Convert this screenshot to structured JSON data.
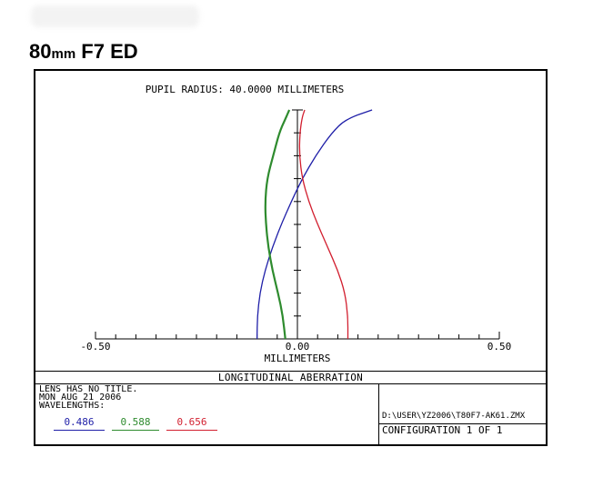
{
  "page": {
    "heading_main": "80",
    "heading_unit": "mm",
    "heading_rest": " F7 ED"
  },
  "figure": {
    "header_text": "PUPIL RADIUS: 40.0000 MILLIMETERS",
    "bar_title": "LONGITUDINAL ABERRATION",
    "lens_title": "LENS HAS NO TITLE.",
    "date": "MON AUG 21 2006",
    "wavelengths_label": "WAVELENGTHS:",
    "wavelengths": [
      {
        "label": "0.486",
        "color": "#1f1fa8"
      },
      {
        "label": "0.588",
        "color": "#2e8b2e"
      },
      {
        "label": "0.656",
        "color": "#d21f2f"
      }
    ],
    "file_path": "D:\\USER\\YZ2006\\T80F7-AK61.ZMX",
    "configuration": "CONFIGURATION  1  OF  1"
  },
  "chart_data": {
    "type": "line",
    "title": "PUPIL RADIUS: 40.0000 MILLIMETERS",
    "xlabel": "MILLIMETERS",
    "ylabel": "",
    "xlim": [
      -0.5,
      0.5
    ],
    "ylim": [
      0,
      1
    ],
    "x_ticks": [
      -0.5,
      0.0,
      0.5
    ],
    "x_tick_labels": [
      "-0.50",
      "0.00",
      "0.50"
    ],
    "x_minor_step": 0.05,
    "y_ticks": [
      0.1,
      0.2,
      0.3,
      0.4,
      0.5,
      0.6,
      0.7,
      0.8,
      0.9,
      1.0
    ],
    "grid": false,
    "series": [
      {
        "name": "0.486",
        "color": "#1f1fa8",
        "points": [
          [
            -0.1,
            0.0
          ],
          [
            -0.099,
            0.1
          ],
          [
            -0.093,
            0.2
          ],
          [
            -0.08,
            0.3
          ],
          [
            -0.062,
            0.4
          ],
          [
            -0.04,
            0.5
          ],
          [
            -0.015,
            0.6
          ],
          [
            0.012,
            0.7
          ],
          [
            0.045,
            0.8
          ],
          [
            0.085,
            0.9
          ],
          [
            0.12,
            0.96
          ],
          [
            0.185,
            1.0
          ]
        ]
      },
      {
        "name": "0.588",
        "color": "#2e8b2e",
        "points": [
          [
            -0.03,
            0.0
          ],
          [
            -0.036,
            0.1
          ],
          [
            -0.048,
            0.2
          ],
          [
            -0.062,
            0.3
          ],
          [
            -0.072,
            0.4
          ],
          [
            -0.078,
            0.5
          ],
          [
            -0.08,
            0.6
          ],
          [
            -0.075,
            0.7
          ],
          [
            -0.06,
            0.8
          ],
          [
            -0.045,
            0.9
          ],
          [
            -0.03,
            0.96
          ],
          [
            -0.02,
            1.0
          ]
        ]
      },
      {
        "name": "0.656",
        "color": "#d21f2f",
        "points": [
          [
            0.125,
            0.0
          ],
          [
            0.125,
            0.1
          ],
          [
            0.118,
            0.2
          ],
          [
            0.1,
            0.3
          ],
          [
            0.075,
            0.4
          ],
          [
            0.05,
            0.5
          ],
          [
            0.028,
            0.6
          ],
          [
            0.012,
            0.7
          ],
          [
            0.005,
            0.8
          ],
          [
            0.006,
            0.9
          ],
          [
            0.012,
            0.97
          ],
          [
            0.018,
            1.0
          ]
        ]
      }
    ]
  }
}
